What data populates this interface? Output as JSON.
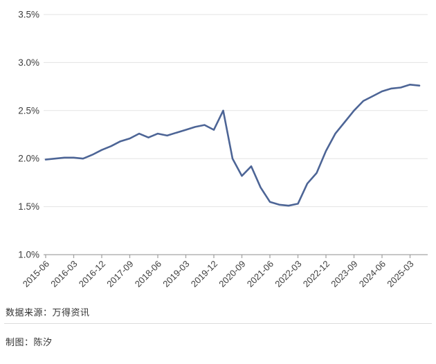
{
  "chart_data": {
    "type": "line",
    "title": "",
    "xlabel": "",
    "ylabel": "",
    "x": [
      "2015-06",
      "2015-09",
      "2015-12",
      "2016-03",
      "2016-06",
      "2016-09",
      "2016-12",
      "2017-03",
      "2017-06",
      "2017-09",
      "2017-12",
      "2018-03",
      "2018-06",
      "2018-09",
      "2018-12",
      "2019-03",
      "2019-06",
      "2019-09",
      "2019-12",
      "2020-03",
      "2020-06",
      "2020-09",
      "2020-12",
      "2021-03",
      "2021-06",
      "2021-09",
      "2021-12",
      "2022-03",
      "2022-06",
      "2022-09",
      "2022-12",
      "2023-03",
      "2023-06",
      "2023-09",
      "2023-12",
      "2024-03",
      "2024-06",
      "2024-09",
      "2024-12",
      "2025-03",
      "2025-06"
    ],
    "values": [
      1.99,
      2.0,
      2.01,
      2.01,
      2.0,
      2.04,
      2.09,
      2.13,
      2.18,
      2.21,
      2.26,
      2.22,
      2.26,
      2.24,
      2.27,
      2.3,
      2.33,
      2.35,
      2.3,
      2.5,
      2.0,
      1.82,
      1.92,
      1.7,
      1.55,
      1.52,
      1.51,
      1.53,
      1.74,
      1.85,
      2.08,
      2.26,
      2.38,
      2.5,
      2.6,
      2.65,
      2.7,
      2.73,
      2.74,
      2.77,
      2.76
    ],
    "ylim": [
      1.0,
      3.5
    ],
    "yticks": [
      1.0,
      1.5,
      2.0,
      2.5,
      3.0,
      3.5
    ],
    "ytick_labels": [
      "1.0%",
      "1.5%",
      "2.0%",
      "2.5%",
      "3.0%",
      "3.5%"
    ],
    "xtick_every": 3,
    "xtick_labels": [
      "2015-06",
      "2016-03",
      "2016-12",
      "2017-09",
      "2018-06",
      "2019-03",
      "2019-12",
      "2020-09",
      "2021-06",
      "2022-03",
      "2022-12",
      "2023-09",
      "2024-06",
      "2025-03"
    ],
    "grid": true,
    "legend": "none",
    "colors": {
      "line": "#4d6596",
      "grid": "#e3e3e3",
      "axis": "#a3a3a3",
      "tick_label": "#3d3d3d"
    }
  },
  "footer": {
    "source_label": "数据来源：万得资讯",
    "credit_label": "制图：陈汐"
  }
}
